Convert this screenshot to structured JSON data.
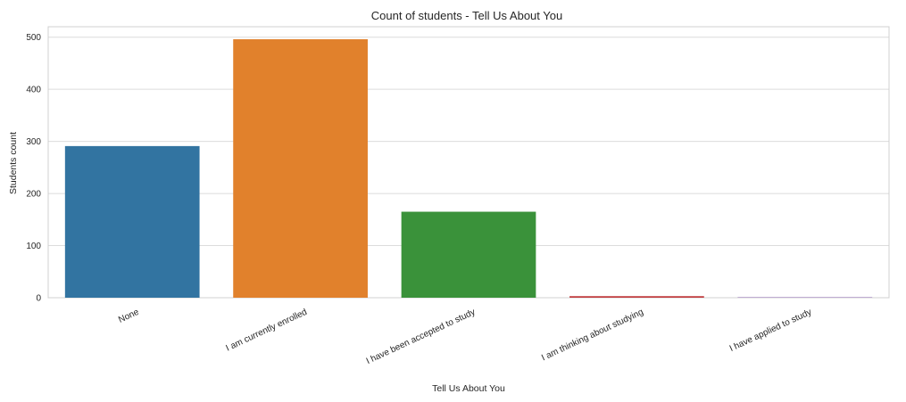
{
  "chart_data": {
    "type": "bar",
    "title": "Count of students - Tell Us About You",
    "xlabel": "Tell Us About You",
    "ylabel": "Students count",
    "categories": [
      "None",
      "I am currently enrolled",
      "I have been accepted to study",
      "I am thinking about studying",
      "I have applied to study"
    ],
    "values": [
      291,
      496,
      165,
      3,
      1
    ],
    "colors": [
      "#3274a1",
      "#e1812c",
      "#3a923a",
      "#c03d3e",
      "#9372b2"
    ],
    "ylim": [
      0,
      520
    ],
    "yticks": [
      0,
      100,
      200,
      300,
      400,
      500
    ],
    "grid": true,
    "grid_axis": "y",
    "xtick_rotation_deg": 25
  }
}
